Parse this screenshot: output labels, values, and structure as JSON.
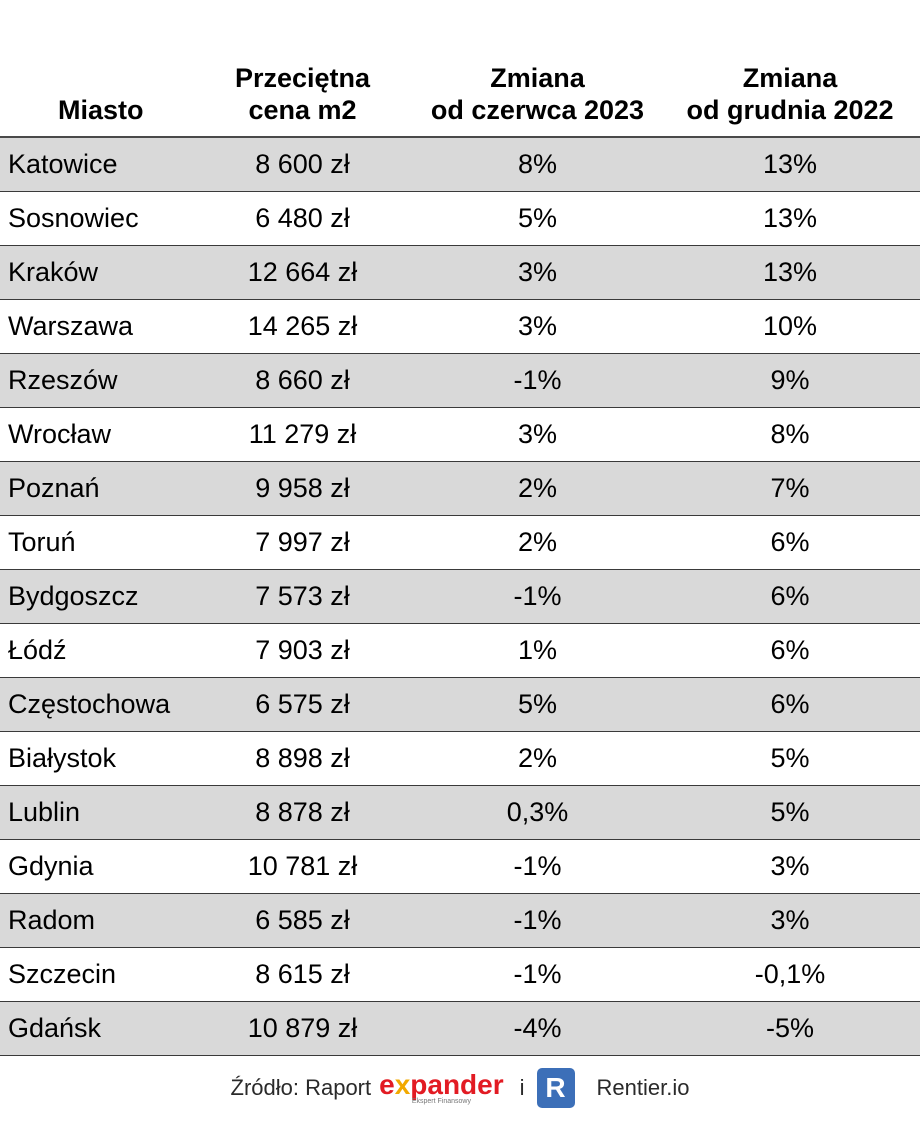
{
  "chart_data": {
    "type": "table",
    "columns": [
      {
        "lines": [
          "",
          "Miasto"
        ]
      },
      {
        "lines": [
          "Przeciętna",
          "cena m2"
        ]
      },
      {
        "lines": [
          "Zmiana",
          "od czerwca 2023"
        ]
      },
      {
        "lines": [
          "Zmiana",
          "od grudnia 2022"
        ]
      }
    ],
    "rows": [
      {
        "city": "Katowice",
        "price": "8 600 zł",
        "change_jun2023": "8%",
        "change_dec2022": "13%"
      },
      {
        "city": "Sosnowiec",
        "price": "6 480 zł",
        "change_jun2023": "5%",
        "change_dec2022": "13%"
      },
      {
        "city": "Kraków",
        "price": "12 664 zł",
        "change_jun2023": "3%",
        "change_dec2022": "13%"
      },
      {
        "city": "Warszawa",
        "price": "14 265 zł",
        "change_jun2023": "3%",
        "change_dec2022": "10%"
      },
      {
        "city": "Rzeszów",
        "price": "8 660 zł",
        "change_jun2023": "-1%",
        "change_dec2022": "9%"
      },
      {
        "city": "Wrocław",
        "price": "11 279 zł",
        "change_jun2023": "3%",
        "change_dec2022": "8%"
      },
      {
        "city": "Poznań",
        "price": "9 958 zł",
        "change_jun2023": "2%",
        "change_dec2022": "7%"
      },
      {
        "city": "Toruń",
        "price": "7 997 zł",
        "change_jun2023": "2%",
        "change_dec2022": "6%"
      },
      {
        "city": "Bydgoszcz",
        "price": "7 573 zł",
        "change_jun2023": "-1%",
        "change_dec2022": "6%"
      },
      {
        "city": "Łódź",
        "price": "7 903 zł",
        "change_jun2023": "1%",
        "change_dec2022": "6%"
      },
      {
        "city": "Częstochowa",
        "price": "6 575 zł",
        "change_jun2023": "5%",
        "change_dec2022": "6%"
      },
      {
        "city": "Białystok",
        "price": "8 898 zł",
        "change_jun2023": "2%",
        "change_dec2022": "5%"
      },
      {
        "city": "Lublin",
        "price": "8 878 zł",
        "change_jun2023": "0,3%",
        "change_dec2022": "5%"
      },
      {
        "city": "Gdynia",
        "price": "10 781 zł",
        "change_jun2023": "-1%",
        "change_dec2022": "3%"
      },
      {
        "city": "Radom",
        "price": "6 585 zł",
        "change_jun2023": "-1%",
        "change_dec2022": "3%"
      },
      {
        "city": "Szczecin",
        "price": "8 615 zł",
        "change_jun2023": "-1%",
        "change_dec2022": "-0,1%"
      },
      {
        "city": "Gdańsk",
        "price": "10 879 zł",
        "change_jun2023": "-4%",
        "change_dec2022": "-5%"
      }
    ]
  },
  "footer": {
    "source_prefix": "Źródło: Raport",
    "expander_pre": "e",
    "expander_x": "x",
    "expander_post": "pander",
    "expander_tagline": "Ekspert Finansowy",
    "connector": "i",
    "rentier_mark": "R",
    "rentier_name": "Rentier.io"
  },
  "colors": {
    "shade": "#d9d9d9",
    "expander_red": "#e21b23",
    "expander_orange": "#f2a900",
    "rentier_blue": "#3c6fb8"
  }
}
